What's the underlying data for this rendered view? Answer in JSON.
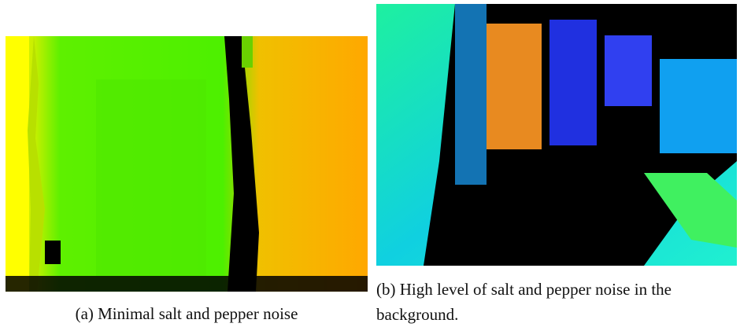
{
  "figures": [
    {
      "caption": "(a) Minimal salt and pepper noise"
    },
    {
      "caption": "(b) High level of salt and pepper noise in the background."
    }
  ]
}
